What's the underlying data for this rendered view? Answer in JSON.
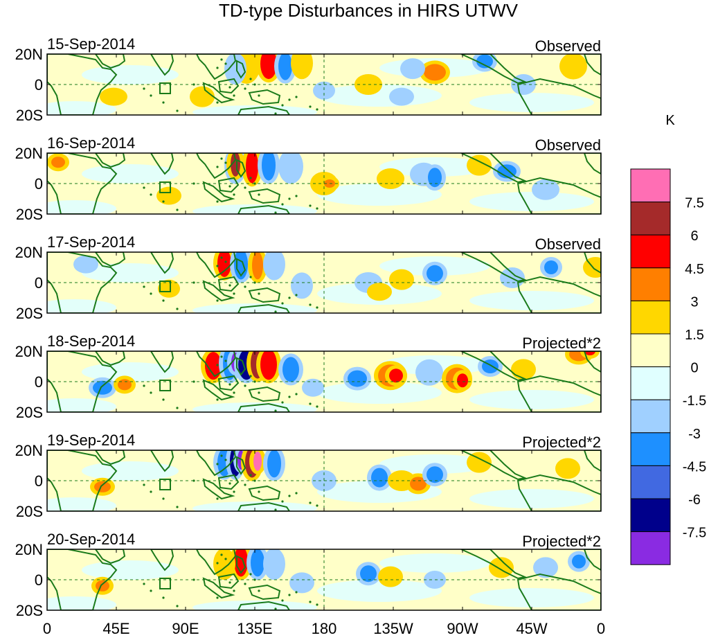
{
  "title": "TD-type Disturbances in HIRS UTWV",
  "units": "K",
  "lat_labels": [
    "20N",
    "0",
    "20S"
  ],
  "lon_labels": [
    "0",
    "45E",
    "90E",
    "135E",
    "180",
    "135W",
    "90W",
    "45W",
    "0"
  ],
  "panels": [
    {
      "date": "15-Sep-2014",
      "label": "Observed"
    },
    {
      "date": "16-Sep-2014",
      "label": "Observed"
    },
    {
      "date": "17-Sep-2014",
      "label": "Observed"
    },
    {
      "date": "18-Sep-2014",
      "label": "Projected*2"
    },
    {
      "date": "19-Sep-2014",
      "label": "Projected*2"
    },
    {
      "date": "20-Sep-2014",
      "label": "Projected*2"
    }
  ],
  "colorbar": {
    "levels": [
      "7.5",
      "6",
      "4.5",
      "3",
      "1.5",
      "0",
      "-1.5",
      "-3",
      "-4.5",
      "-6",
      "-7.5"
    ],
    "colors": [
      "#ff6eb4",
      "#a52a2a",
      "#ff0000",
      "#ff7f00",
      "#ffd700",
      "#ffffc8",
      "#e0ffff",
      "#a0d0ff",
      "#1e90ff",
      "#4169e1",
      "#00008b",
      "#8a2be2"
    ]
  },
  "colors": {
    "coast": "#1a7a1a",
    "background_field": "#ffffc8",
    "ref_line": "#1a7a1a"
  }
}
